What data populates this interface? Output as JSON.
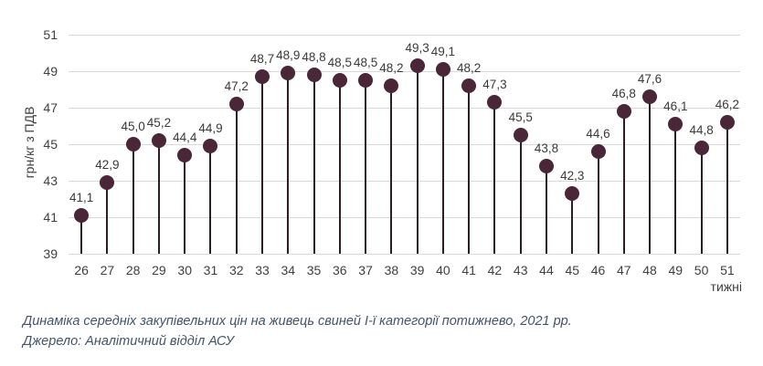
{
  "chart_data": {
    "type": "scatter",
    "subtype": "lollipop",
    "x": [
      26,
      27,
      28,
      29,
      30,
      31,
      32,
      33,
      34,
      35,
      36,
      37,
      38,
      39,
      40,
      41,
      42,
      43,
      44,
      45,
      46,
      47,
      48,
      49,
      50,
      51
    ],
    "values": [
      41.1,
      42.9,
      45.0,
      45.2,
      44.4,
      44.9,
      47.2,
      48.7,
      48.9,
      48.8,
      48.5,
      48.5,
      48.2,
      49.3,
      49.1,
      48.2,
      47.3,
      45.5,
      43.8,
      42.3,
      44.6,
      46.8,
      47.6,
      46.1,
      44.8,
      46.2
    ],
    "point_labels": [
      "41,1",
      "42,9",
      "45,0",
      "45,2",
      "44,4",
      "44,9",
      "47,2",
      "48,7",
      "48,9",
      "48,8",
      "48,5",
      "48,5",
      "48,2",
      "49,3",
      "49,1",
      "48,2",
      "47,3",
      "45,5",
      "43,8",
      "42,3",
      "44,6",
      "46,8",
      "47,6",
      "46,1",
      "44,8",
      "46,2"
    ],
    "xlabel": "тижні",
    "ylabel": "грн/кг з ПДВ",
    "ylim": [
      39,
      51
    ],
    "yticks": [
      39,
      41,
      43,
      45,
      47,
      49,
      51
    ],
    "grid": true,
    "legend": "none",
    "colors": {
      "marker": "#4a2639",
      "stem": "#2e1c26",
      "gridline": "#d9d9d9",
      "tick_text": "#404040",
      "data_label": "#3a3a3a",
      "caption": "#44546a"
    }
  },
  "caption": {
    "title": "Динаміка середніх закупівельних цін на живець свиней І-ї категорії потижнево, 2021 рр.",
    "source": "Джерело: Аналітичний відділ АСУ"
  }
}
